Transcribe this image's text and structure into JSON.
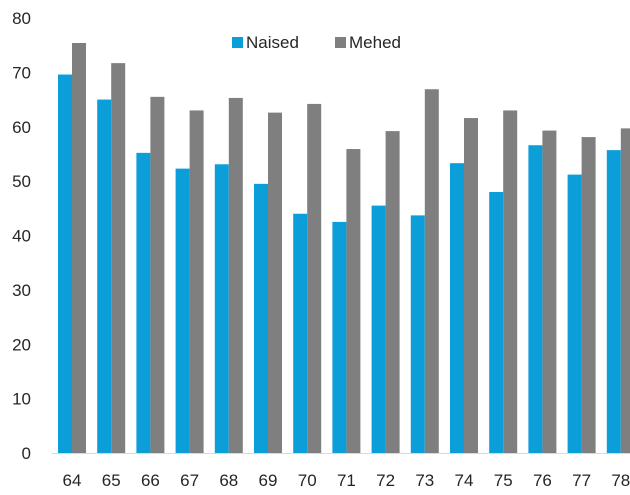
{
  "chart_data": {
    "type": "bar",
    "title": "",
    "xlabel": "",
    "ylabel": "",
    "categories": [
      "64",
      "65",
      "66",
      "67",
      "68",
      "69",
      "70",
      "71",
      "72",
      "73",
      "74",
      "75",
      "76",
      "77",
      "78"
    ],
    "series": [
      {
        "name": "Naised",
        "color": "#0B9ED9",
        "values": [
          69.6,
          65.0,
          55.2,
          52.3,
          53.1,
          49.5,
          44.0,
          42.5,
          45.5,
          43.7,
          53.3,
          48.0,
          56.6,
          51.2,
          55.7
        ]
      },
      {
        "name": "Mehed",
        "color": "#7F7F7F",
        "values": [
          75.4,
          71.7,
          65.5,
          63.0,
          65.3,
          62.6,
          64.2,
          55.9,
          59.2,
          66.9,
          61.6,
          63.0,
          59.3,
          58.1,
          59.7
        ]
      }
    ],
    "yticks": [
      0,
      10,
      20,
      30,
      40,
      50,
      60,
      70,
      80
    ],
    "ylim": [
      0,
      80
    ],
    "grid": false,
    "legend_position": "top-center"
  }
}
